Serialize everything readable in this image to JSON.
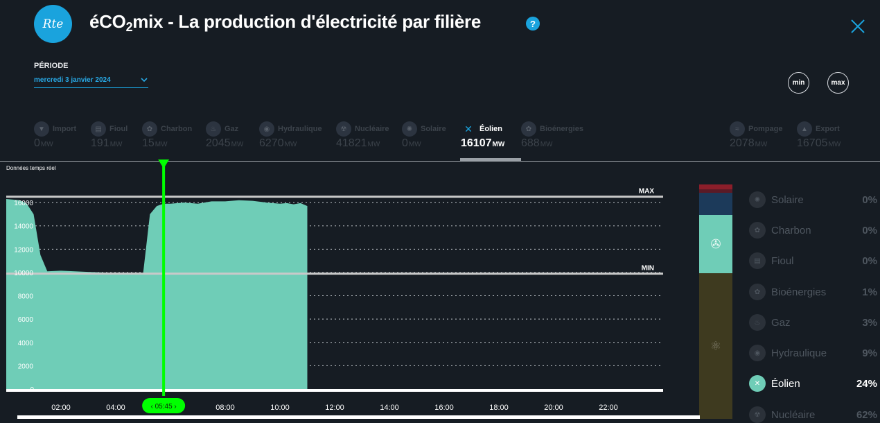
{
  "header": {
    "logo_text": "Rte",
    "title_pre": "éCO",
    "title_sub": "2",
    "title_post": "mix - La production d'électricité par filière",
    "help_label": "?"
  },
  "period": {
    "label": "PÉRIODE",
    "value": "mercredi 3 janvier 2024"
  },
  "buttons": {
    "min": "min",
    "max": "max"
  },
  "colors": {
    "accent": "#1aa3dd",
    "area": "#6fcdb7",
    "cursor": "#00ff00",
    "background": "#161c23"
  },
  "filieres": [
    {
      "name": "Import",
      "value": "0",
      "unit": "MW",
      "icon": "import-icon"
    },
    {
      "name": "Fioul",
      "value": "191",
      "unit": "MW",
      "icon": "fioul-icon"
    },
    {
      "name": "Charbon",
      "value": "15",
      "unit": "MW",
      "icon": "charbon-icon"
    },
    {
      "name": "Gaz",
      "value": "2045",
      "unit": "MW",
      "icon": "gaz-icon"
    },
    {
      "name": "Hydraulique",
      "value": "6270",
      "unit": "MW",
      "icon": "hydraulique-icon"
    },
    {
      "name": "Nucléaire",
      "value": "41821",
      "unit": "MW",
      "icon": "nucleaire-icon"
    },
    {
      "name": "Solaire",
      "value": "0",
      "unit": "MW",
      "icon": "solaire-icon"
    },
    {
      "name": "Éolien",
      "value": "16107",
      "unit": "MW",
      "icon": "eolien-icon",
      "active": true
    },
    {
      "name": "Bioénergies",
      "value": "688",
      "unit": "MW",
      "icon": "bioenergies-icon"
    },
    {
      "name": "Pompage",
      "value": "2078",
      "unit": "MW",
      "icon": "pompage-icon"
    },
    {
      "name": "Export",
      "value": "16705",
      "unit": "MW",
      "icon": "export-icon"
    }
  ],
  "chart_caption": "Données temps réel",
  "chart_data": {
    "type": "area",
    "series": [
      {
        "x": [
          "00:00",
          "00:30",
          "00:45",
          "01:00",
          "01:15",
          "01:30",
          "02:00",
          "02:30",
          "03:00",
          "03:30",
          "04:00",
          "04:30",
          "05:00",
          "05:15",
          "05:30",
          "05:45",
          "06:00",
          "06:30",
          "07:00",
          "07:30",
          "08:00",
          "08:30",
          "09:00",
          "09:30",
          "10:00",
          "10:15",
          "10:30",
          "10:45",
          "11:00"
        ],
        "values": [
          16300,
          16200,
          15900,
          15000,
          11500,
          10100,
          10150,
          10100,
          10050,
          10000,
          9950,
          9950,
          9900,
          15000,
          15700,
          15900,
          15900,
          16000,
          15900,
          16100,
          16100,
          16200,
          16150,
          16000,
          15900,
          15950,
          15850,
          15950,
          15700
        ]
      }
    ],
    "x_ticks": [
      "02:00",
      "04:00",
      "06:00",
      "08:00",
      "10:00",
      "12:00",
      "14:00",
      "16:00",
      "18:00",
      "20:00",
      "22:00"
    ],
    "x_range": [
      "00:00",
      "24:00"
    ],
    "y_ticks": [
      0,
      2000,
      4000,
      6000,
      8000,
      10000,
      12000,
      14000,
      16000
    ],
    "ylim": [
      0,
      16600
    ],
    "max_line": {
      "label": "MAX",
      "value": 16500
    },
    "min_line": {
      "label": "MIN",
      "value": 9900
    },
    "cursor": {
      "time": "05:45",
      "label": "05:45"
    },
    "grid": true
  },
  "stack_bar": [
    {
      "name": "Export",
      "color": "#8b1e2a",
      "share": 0.02
    },
    {
      "name": "Gaz",
      "color": "#5a1a26",
      "share": 0.015
    },
    {
      "name": "Hydraulique",
      "color": "#1c3a5a",
      "share": 0.095
    },
    {
      "name": "Éolien",
      "color": "#6fcdb7",
      "share": 0.25,
      "icon": "wind-turbine-icon"
    },
    {
      "name": "Nucléaire",
      "color": "#3e3a1f",
      "share": 0.62,
      "icon": "nuclear-icon"
    }
  ],
  "legend": [
    {
      "name": "Solaire",
      "pct": "0%",
      "icon": "solaire-icon"
    },
    {
      "name": "Charbon",
      "pct": "0%",
      "icon": "charbon-icon"
    },
    {
      "name": "Fioul",
      "pct": "0%",
      "icon": "fioul-icon"
    },
    {
      "name": "Bioénergies",
      "pct": "1%",
      "icon": "bioenergies-icon"
    },
    {
      "name": "Gaz",
      "pct": "3%",
      "icon": "gaz-icon"
    },
    {
      "name": "Hydraulique",
      "pct": "9%",
      "icon": "hydraulique-icon"
    },
    {
      "name": "Éolien",
      "pct": "24%",
      "icon": "eolien-icon",
      "active": true
    },
    {
      "name": "Nucléaire",
      "pct": "62%",
      "icon": "nucleaire-icon"
    }
  ]
}
